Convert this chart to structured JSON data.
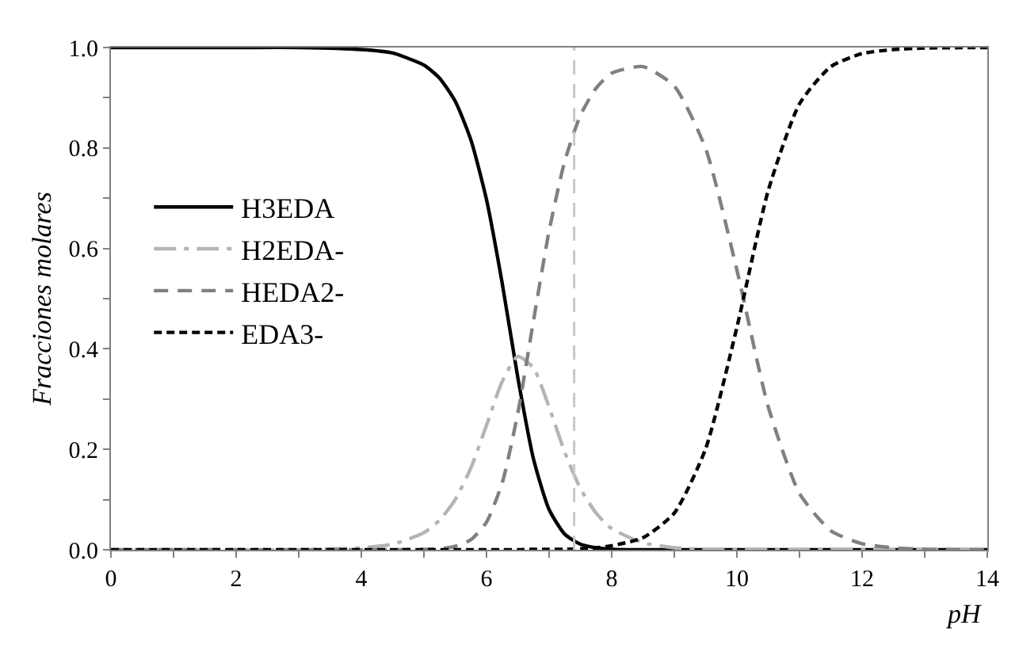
{
  "chart_data": {
    "type": "line",
    "xlabel": "pH",
    "ylabel": "Fracciones molares",
    "x": [
      0,
      1,
      2,
      3,
      4,
      4.5,
      5,
      5.25,
      5.5,
      5.75,
      6,
      6.25,
      6.5,
      6.75,
      7,
      7.25,
      7.5,
      7.75,
      8,
      8.5,
      9,
      9.5,
      10,
      10.5,
      11,
      11.5,
      12,
      12.5,
      13,
      14
    ],
    "series": [
      {
        "name": "H3EDA",
        "color": "#000000",
        "line_style": "solid",
        "values": [
          1,
          1,
          1,
          1,
          0.996,
          0.989,
          0.965,
          0.939,
          0.893,
          0.816,
          0.697,
          0.531,
          0.343,
          0.181,
          0.08,
          0.031,
          0.011,
          0.004,
          0.001,
          0,
          0,
          0,
          0,
          0,
          0,
          0,
          0,
          0,
          0,
          0
        ]
      },
      {
        "name": "H2EDA-",
        "color": "#b4b4b4",
        "line_style": "dashdot",
        "values": [
          0,
          0,
          0,
          0,
          0.004,
          0.011,
          0.034,
          0.059,
          0.1,
          0.163,
          0.248,
          0.335,
          0.385,
          0.362,
          0.284,
          0.194,
          0.122,
          0.073,
          0.042,
          0.014,
          0.004,
          0.001,
          0,
          0,
          0,
          0,
          0,
          0,
          0,
          0
        ]
      },
      {
        "name": "HEDA2-",
        "color": "#808080",
        "line_style": "dashed",
        "values": [
          0,
          0,
          0,
          0,
          0,
          0,
          0.001,
          0.002,
          0.007,
          0.02,
          0.055,
          0.133,
          0.272,
          0.456,
          0.635,
          0.774,
          0.865,
          0.919,
          0.949,
          0.962,
          0.923,
          0.799,
          0.557,
          0.285,
          0.112,
          0.038,
          0.012,
          0.004,
          0.001,
          0
        ]
      },
      {
        "name": "EDA3-",
        "color": "#000000",
        "line_style": "dotted",
        "values": [
          0,
          0,
          0,
          0,
          0,
          0,
          0,
          0,
          0,
          0,
          0,
          0,
          0,
          0.001,
          0.001,
          0.001,
          0.002,
          0.004,
          0.008,
          0.024,
          0.073,
          0.201,
          0.443,
          0.715,
          0.888,
          0.962,
          0.988,
          0.996,
          0.999,
          1
        ]
      }
    ],
    "xlim": [
      0,
      14
    ],
    "ylim": [
      0,
      1
    ],
    "xticks": [
      0,
      {
        "value": 1,
        "label": null
      },
      2,
      {
        "value": 3,
        "label": null
      },
      4,
      {
        "value": 5,
        "label": null
      },
      6,
      {
        "value": 7,
        "label": null
      },
      8,
      {
        "value": 9,
        "label": null
      },
      10,
      {
        "value": 11,
        "label": null
      },
      12,
      {
        "value": 13,
        "label": null
      },
      14
    ],
    "yticks": [
      {
        "value": 0,
        "label": "0.0"
      },
      {
        "value": 0.1,
        "label": null
      },
      0.2,
      {
        "value": 0.3,
        "label": null
      },
      0.4,
      {
        "value": 0.5,
        "label": null
      },
      0.6,
      {
        "value": 0.7,
        "label": null
      },
      0.8,
      {
        "value": 0.9,
        "label": null
      },
      {
        "value": 1,
        "label": "1.0"
      }
    ],
    "ref_lines": [
      {
        "axis": "x",
        "value": 7.4,
        "color": "#c8c8c8",
        "line_style": "dashed"
      }
    ],
    "legend": "left",
    "marker": "none"
  }
}
